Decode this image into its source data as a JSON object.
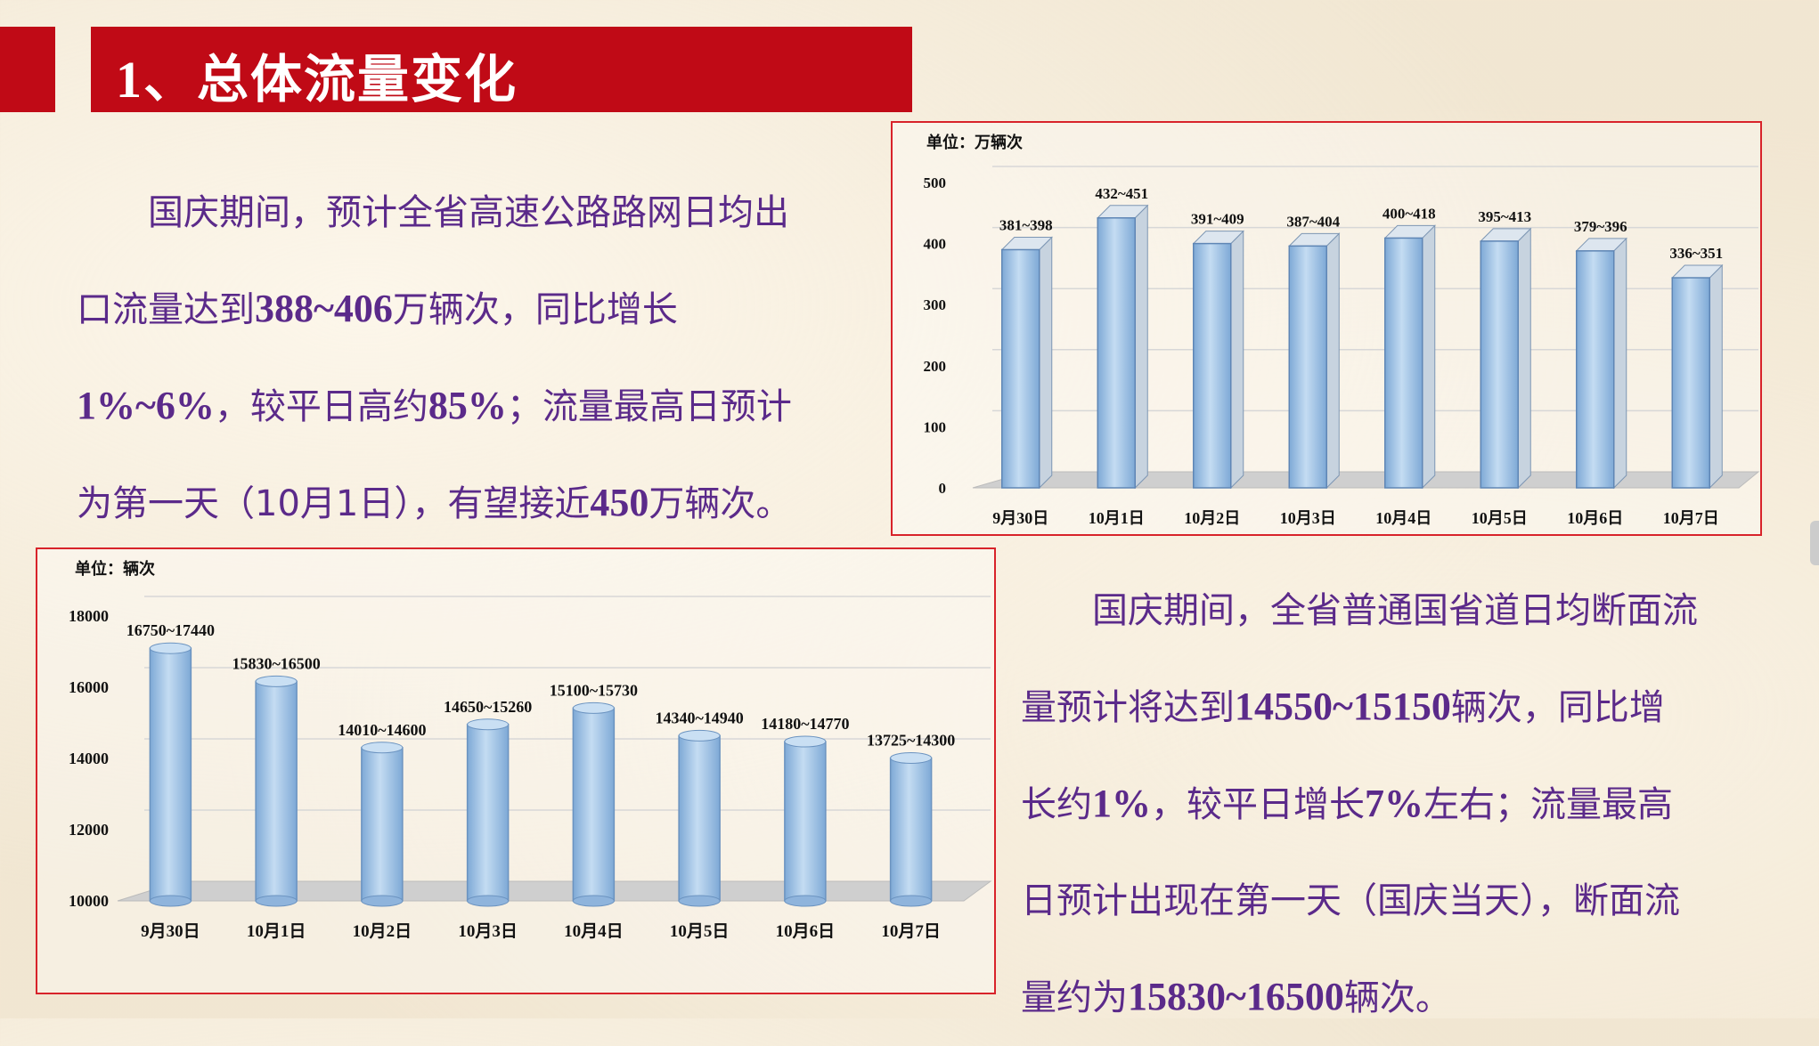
{
  "header": {
    "title": "1、总体流量变化"
  },
  "paragraph1": {
    "lines": [
      [
        {
          "t": "国庆期间，预计全省高速公路路网日均出"
        }
      ],
      [
        {
          "t": "口流量达到"
        },
        {
          "t": "388~406",
          "b": true
        },
        {
          "t": "万辆次，同比增长"
        }
      ],
      [
        {
          "t": "1%~6%",
          "b": true
        },
        {
          "t": "，较平日高约"
        },
        {
          "t": "85%",
          "b": true
        },
        {
          "t": "；流量最高日预计"
        }
      ],
      [
        {
          "t": "为第一天（10月1日），有望接近"
        },
        {
          "t": "450",
          "b": true
        },
        {
          "t": "万辆次。"
        }
      ]
    ]
  },
  "paragraph2": {
    "lines": [
      [
        {
          "t": "国庆期间，全省普通国省道日均断面流"
        }
      ],
      [
        {
          "t": "量预计将达到"
        },
        {
          "t": "14550~15150",
          "b": true
        },
        {
          "t": "辆次，同比增"
        }
      ],
      [
        {
          "t": "长约"
        },
        {
          "t": "1%",
          "b": true
        },
        {
          "t": "，较平日增长"
        },
        {
          "t": "7%",
          "b": true
        },
        {
          "t": "左右；流量最高"
        }
      ],
      [
        {
          "t": "日预计出现在第一天（国庆当天），断面流"
        }
      ],
      [
        {
          "t": "量约为"
        },
        {
          "t": "15830~16500",
          "b": true
        },
        {
          "t": "辆次。"
        }
      ]
    ]
  },
  "chart_data": [
    {
      "type": "bar",
      "unit_label": "单位：万辆次",
      "categories": [
        "9月30日",
        "10月1日",
        "10月2日",
        "10月3日",
        "10月4日",
        "10月5日",
        "10月6日",
        "10月7日"
      ],
      "values": [
        390,
        442,
        400,
        396,
        409,
        404,
        388,
        344
      ],
      "labels": [
        "381~398",
        "432~451",
        "391~409",
        "387~404",
        "400~418",
        "395~413",
        "379~396",
        "336~351"
      ],
      "ylim": [
        0,
        500
      ],
      "yticks": [
        0,
        100,
        200,
        300,
        400,
        500
      ],
      "grid": true,
      "bar_color": "#9cc2e6"
    },
    {
      "type": "bar",
      "unit_label": "单位：辆次",
      "categories": [
        "9月30日",
        "10月1日",
        "10月2日",
        "10月3日",
        "10月4日",
        "10月5日",
        "10月6日",
        "10月7日"
      ],
      "values": [
        17095,
        16165,
        14305,
        14955,
        15415,
        14640,
        14475,
        14013
      ],
      "labels": [
        "16750~17440",
        "15830~16500",
        "14010~14600",
        "14650~15260",
        "15100~15730",
        "14340~14940",
        "14180~14770",
        "13725~14300"
      ],
      "ylim": [
        10000,
        18000
      ],
      "yticks": [
        10000,
        12000,
        14000,
        16000,
        18000
      ],
      "grid": true,
      "bar_color": "#9cc2e6"
    }
  ]
}
